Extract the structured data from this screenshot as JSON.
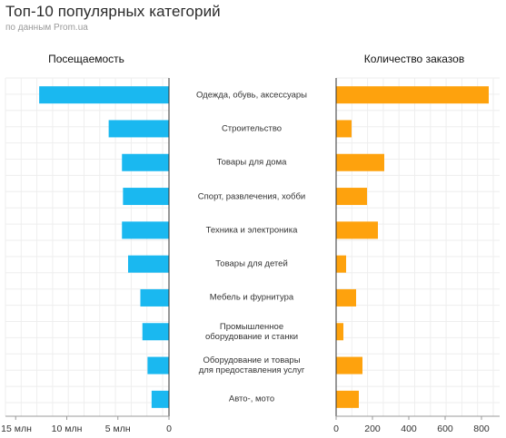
{
  "title": "Топ-10 популярных категорий",
  "subtitle": "по данным Prom.ua",
  "chart_data": {
    "type": "bar",
    "orientation": "horizontal",
    "categories": [
      "Одежда, обувь, аксессуары",
      "Строительство",
      "Товары для дома",
      "Спорт, развлечения, хобби",
      "Техника и электроника",
      "Товары для детей",
      "Мебель и фурнитура",
      "Промышленное\nоборудование и станки",
      "Оборудование и товары\nдля предоставления услуг",
      "Авто-, мото"
    ],
    "panels": [
      {
        "title": "Посещаемость",
        "values": [
          12.7,
          5.9,
          4.6,
          4.5,
          4.6,
          4.0,
          2.8,
          2.6,
          2.1,
          1.7
        ],
        "xlim": [
          0,
          16
        ],
        "direction": "reversed",
        "ticks": [
          0,
          5,
          10,
          15
        ],
        "tick_labels": [
          "0",
          "5 млн",
          "10 млн",
          "15 млн"
        ],
        "color": "#1ab8f0"
      },
      {
        "title": "Количество заказов",
        "values": [
          840,
          85,
          265,
          170,
          230,
          55,
          110,
          40,
          145,
          125
        ],
        "xlim": [
          0,
          900
        ],
        "direction": "normal",
        "ticks": [
          0,
          200,
          400,
          600,
          800
        ],
        "tick_labels": [
          "0",
          "200",
          "400",
          "600",
          "800"
        ],
        "color": "#fea20d"
      }
    ],
    "grid": true
  }
}
